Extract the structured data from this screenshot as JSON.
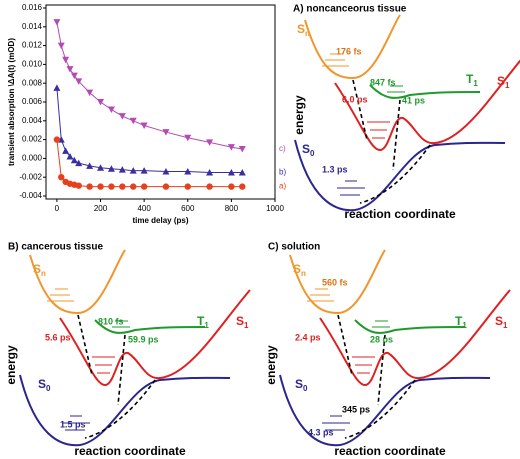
{
  "chart_data": {
    "type": "scatter",
    "xlabel": "time delay (ps)",
    "ylabel": "transient absorption \\ΔA(t) (mOD)",
    "x": [
      0,
      20,
      40,
      60,
      80,
      100,
      150,
      200,
      250,
      300,
      350,
      400,
      500,
      600,
      700,
      800,
      850
    ],
    "series": [
      {
        "name": "c)",
        "color": "#b44bb4",
        "marker": "triangle-down",
        "values": [
          0.0145,
          0.012,
          0.0105,
          0.0095,
          0.0088,
          0.0082,
          0.007,
          0.006,
          0.0052,
          0.0045,
          0.004,
          0.0035,
          0.0028,
          0.0022,
          0.0017,
          0.0012,
          0.001
        ]
      },
      {
        "name": "b)",
        "color": "#3a2fa0",
        "marker": "triangle-up",
        "values": [
          0.0075,
          0.002,
          0.0008,
          0.0002,
          -0.0002,
          -0.0005,
          -0.0008,
          -0.001,
          -0.0011,
          -0.0012,
          -0.0013,
          -0.0013,
          -0.0014,
          -0.0014,
          -0.0015,
          -0.0015,
          -0.0015
        ]
      },
      {
        "name": "a)",
        "color": "#e8401c",
        "marker": "circle",
        "values": [
          0.002,
          -0.002,
          -0.0025,
          -0.0027,
          -0.0028,
          -0.0029,
          -0.003,
          -0.003,
          -0.003,
          -0.003,
          -0.003,
          -0.003,
          -0.003,
          -0.003,
          -0.003,
          -0.003,
          -0.003
        ]
      }
    ],
    "xlim": [
      -50,
      1000
    ],
    "xticks": [
      0,
      200,
      400,
      600,
      800,
      1000
    ],
    "ylim": [
      -0.004,
      0.016
    ],
    "yticks": [
      -0.004,
      -0.002,
      {
        "value": 0,
        "label": "0.000"
      },
      0.002,
      0.004,
      0.006,
      0.008,
      {
        "value": 0.01,
        "label": "0.010"
      },
      0.012,
      0.014,
      0.016
    ]
  },
  "panels": [
    {
      "title": "A) noncanceorus tissue",
      "energy_label": "energy",
      "coordinate_label": "reaction coordinate",
      "states": [
        {
          "symbol": "S",
          "sub": "n"
        },
        {
          "symbol": "T",
          "sub": "1"
        },
        {
          "symbol": "S",
          "sub": "1"
        },
        {
          "symbol": "S",
          "sub": "0"
        }
      ],
      "times": [
        "176 fs",
        "847 fs",
        "41 ps",
        "6.0 ps",
        "1.3 ps"
      ]
    },
    {
      "title": "B) cancerous tissue",
      "energy_label": "energy",
      "coordinate_label": "reaction coordinate",
      "states": [
        {
          "symbol": "S",
          "sub": "n"
        },
        {
          "symbol": "T",
          "sub": "1"
        },
        {
          "symbol": "S",
          "sub": "1"
        },
        {
          "symbol": "S",
          "sub": "0"
        }
      ],
      "times": [
        "5.6 ps",
        "810 fs",
        "59.9 ps",
        "1.5 ps"
      ]
    },
    {
      "title": "C) solution",
      "energy_label": "energy",
      "coordinate_label": "reaction coordinate",
      "states": [
        {
          "symbol": "S",
          "sub": "n"
        },
        {
          "symbol": "T",
          "sub": "1"
        },
        {
          "symbol": "S",
          "sub": "1"
        },
        {
          "symbol": "S",
          "sub": "0"
        }
      ],
      "times": [
        "560 fs",
        "2.4 ps",
        "28 ps",
        "345 ps",
        "4.3 ps"
      ]
    }
  ]
}
